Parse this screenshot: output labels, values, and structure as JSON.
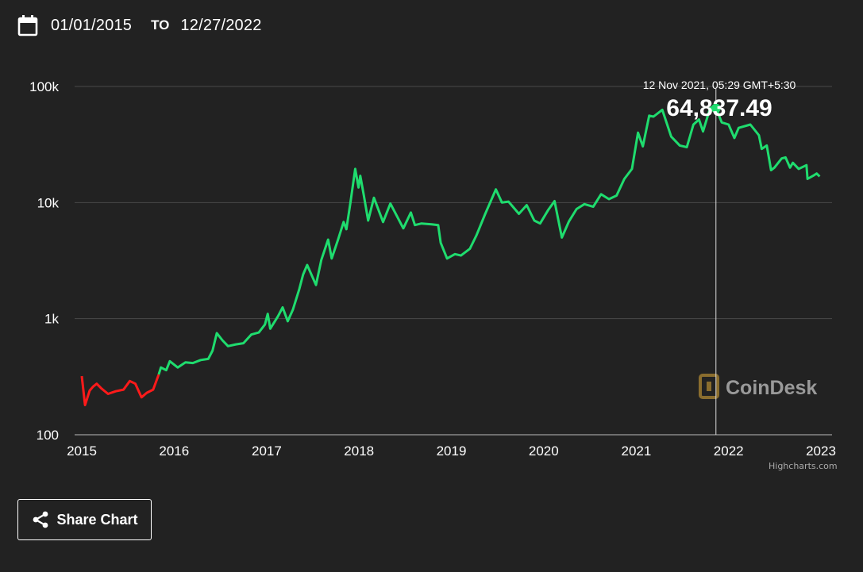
{
  "date_range": {
    "from": "01/01/2015",
    "to_label": "TO",
    "to": "12/27/2022",
    "icon": "calendar-icon"
  },
  "share": {
    "label": "Share Chart",
    "icon": "share-icon"
  },
  "watermark": {
    "text": "CoinDesk"
  },
  "credits": "Highcharts.com",
  "colors": {
    "background": "#222222",
    "up": "#1fdc6e",
    "down": "#ff1a1a",
    "grid": "#4a4a4a"
  },
  "chart_data": {
    "type": "line",
    "y_scale": "log",
    "ylim": [
      100,
      100000
    ],
    "y_ticks": [
      100,
      1000,
      10000,
      100000
    ],
    "y_tick_labels": [
      "100",
      "1k",
      "10k",
      "100k"
    ],
    "x_tick_labels": [
      "2015",
      "2016",
      "2017",
      "2018",
      "2019",
      "2020",
      "2021",
      "2022",
      "2023"
    ],
    "grid": true,
    "tooltip": {
      "date": "12 Nov 2021, 05:29 GMT+5:30",
      "value": "64,837.49",
      "x": "2021-11-12"
    },
    "series": [
      {
        "color": "#1fdc6e",
        "down_color": "#ff1a1a",
        "points": [
          [
            "2015-01-01",
            320
          ],
          [
            "2015-01-14",
            180
          ],
          [
            "2015-02-01",
            240
          ],
          [
            "2015-02-15",
            260
          ],
          [
            "2015-03-01",
            275
          ],
          [
            "2015-03-20",
            250
          ],
          [
            "2015-04-15",
            225
          ],
          [
            "2015-05-15",
            237
          ],
          [
            "2015-06-15",
            245
          ],
          [
            "2015-07-10",
            290
          ],
          [
            "2015-08-01",
            275
          ],
          [
            "2015-08-25",
            210
          ],
          [
            "2015-09-15",
            230
          ],
          [
            "2015-10-10",
            245
          ],
          [
            "2015-11-01",
            330
          ],
          [
            "2015-11-10",
            380
          ],
          [
            "2015-12-01",
            360
          ],
          [
            "2015-12-15",
            430
          ],
          [
            "2016-01-15",
            380
          ],
          [
            "2016-02-15",
            420
          ],
          [
            "2016-03-15",
            415
          ],
          [
            "2016-04-15",
            440
          ],
          [
            "2016-05-15",
            450
          ],
          [
            "2016-06-01",
            530
          ],
          [
            "2016-06-18",
            750
          ],
          [
            "2016-07-10",
            650
          ],
          [
            "2016-08-01",
            580
          ],
          [
            "2016-09-01",
            600
          ],
          [
            "2016-10-01",
            615
          ],
          [
            "2016-11-01",
            730
          ],
          [
            "2016-12-01",
            760
          ],
          [
            "2016-12-25",
            890
          ],
          [
            "2017-01-05",
            1100
          ],
          [
            "2017-01-15",
            820
          ],
          [
            "2017-02-15",
            1050
          ],
          [
            "2017-03-05",
            1250
          ],
          [
            "2017-03-25",
            950
          ],
          [
            "2017-04-15",
            1200
          ],
          [
            "2017-05-10",
            1800
          ],
          [
            "2017-05-25",
            2400
          ],
          [
            "2017-06-10",
            2900
          ],
          [
            "2017-07-15",
            1950
          ],
          [
            "2017-08-05",
            3200
          ],
          [
            "2017-09-01",
            4800
          ],
          [
            "2017-09-15",
            3300
          ],
          [
            "2017-10-10",
            4800
          ],
          [
            "2017-11-01",
            6800
          ],
          [
            "2017-11-12",
            5900
          ],
          [
            "2017-11-28",
            10000
          ],
          [
            "2017-12-17",
            19500
          ],
          [
            "2017-12-30",
            13500
          ],
          [
            "2018-01-06",
            17000
          ],
          [
            "2018-01-20",
            11500
          ],
          [
            "2018-02-06",
            7000
          ],
          [
            "2018-03-01",
            11000
          ],
          [
            "2018-04-06",
            6800
          ],
          [
            "2018-05-05",
            9800
          ],
          [
            "2018-06-25",
            6000
          ],
          [
            "2018-07-25",
            8200
          ],
          [
            "2018-08-10",
            6400
          ],
          [
            "2018-09-05",
            6600
          ],
          [
            "2018-10-15",
            6500
          ],
          [
            "2018-11-10",
            6400
          ],
          [
            "2018-11-20",
            4500
          ],
          [
            "2018-12-15",
            3300
          ],
          [
            "2019-01-15",
            3600
          ],
          [
            "2019-02-08",
            3500
          ],
          [
            "2019-03-15",
            4000
          ],
          [
            "2019-04-10",
            5200
          ],
          [
            "2019-05-15",
            8000
          ],
          [
            "2019-06-26",
            13000
          ],
          [
            "2019-07-20",
            10000
          ],
          [
            "2019-08-15",
            10200
          ],
          [
            "2019-09-25",
            8000
          ],
          [
            "2019-10-26",
            9500
          ],
          [
            "2019-11-25",
            7000
          ],
          [
            "2019-12-18",
            6600
          ],
          [
            "2020-01-20",
            8700
          ],
          [
            "2020-02-13",
            10300
          ],
          [
            "2020-03-13",
            5000
          ],
          [
            "2020-04-10",
            6900
          ],
          [
            "2020-05-10",
            8800
          ],
          [
            "2020-06-10",
            9700
          ],
          [
            "2020-07-15",
            9200
          ],
          [
            "2020-08-15",
            11800
          ],
          [
            "2020-09-15",
            10700
          ],
          [
            "2020-10-15",
            11500
          ],
          [
            "2020-11-15",
            16000
          ],
          [
            "2020-12-15",
            19500
          ],
          [
            "2021-01-08",
            40000
          ],
          [
            "2021-01-27",
            30500
          ],
          [
            "2021-02-21",
            56000
          ],
          [
            "2021-03-10",
            55000
          ],
          [
            "2021-04-14",
            63000
          ],
          [
            "2021-05-19",
            37000
          ],
          [
            "2021-06-22",
            31000
          ],
          [
            "2021-07-20",
            30000
          ],
          [
            "2021-08-15",
            47000
          ],
          [
            "2021-09-06",
            52000
          ],
          [
            "2021-09-22",
            41000
          ],
          [
            "2021-10-20",
            65000
          ],
          [
            "2021-11-10",
            68000
          ],
          [
            "2021-11-12",
            64837
          ],
          [
            "2021-12-05",
            49000
          ],
          [
            "2022-01-01",
            47000
          ],
          [
            "2022-01-24",
            36000
          ],
          [
            "2022-02-10",
            44000
          ],
          [
            "2022-03-28",
            47000
          ],
          [
            "2022-05-01",
            38000
          ],
          [
            "2022-05-12",
            29000
          ],
          [
            "2022-06-01",
            31000
          ],
          [
            "2022-06-18",
            19000
          ],
          [
            "2022-07-01",
            20000
          ],
          [
            "2022-07-30",
            24000
          ],
          [
            "2022-08-14",
            24500
          ],
          [
            "2022-09-01",
            20000
          ],
          [
            "2022-09-12",
            22000
          ],
          [
            "2022-10-05",
            19500
          ],
          [
            "2022-11-05",
            21000
          ],
          [
            "2022-11-09",
            16000
          ],
          [
            "2022-12-01",
            17000
          ],
          [
            "2022-12-15",
            17800
          ],
          [
            "2022-12-27",
            16800
          ]
        ]
      }
    ]
  }
}
